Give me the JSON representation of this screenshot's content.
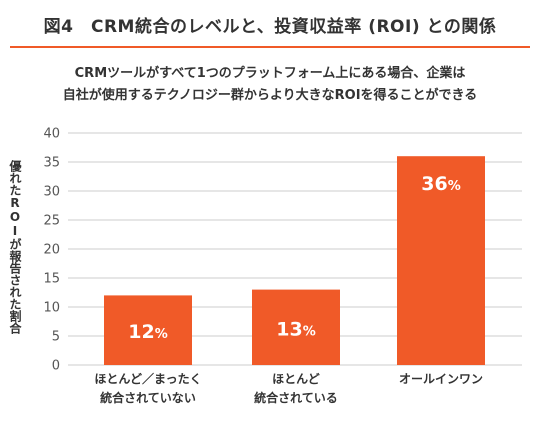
{
  "figure": {
    "title": "図4　CRM統合のレベルと、投資収益率 (ROI) との関係",
    "subtitle_line1": "CRMツールがすべて1つのプラットフォーム上にある場合、企業は",
    "subtitle_line2": "自社が使用するテクノロジー群からより大きなROIを得ることができる",
    "accent_color": "#f05a28"
  },
  "chart_data": {
    "type": "bar",
    "title": "",
    "xlabel": "",
    "ylabel": "優れたROIが報告された割合",
    "categories": [
      [
        "ほとんど／まったく",
        "統合されていない"
      ],
      [
        "ほとんど",
        "統合されている"
      ],
      [
        "オールインワン"
      ]
    ],
    "values": [
      12,
      13,
      36
    ],
    "value_labels": [
      "12",
      "13",
      "36"
    ],
    "value_unit": "%",
    "ylim": [
      0,
      40
    ],
    "yticks": [
      0,
      5,
      10,
      15,
      20,
      25,
      30,
      35,
      40
    ],
    "grid": true,
    "bar_color": "#f05a28",
    "grid_color": "#cccccc"
  }
}
